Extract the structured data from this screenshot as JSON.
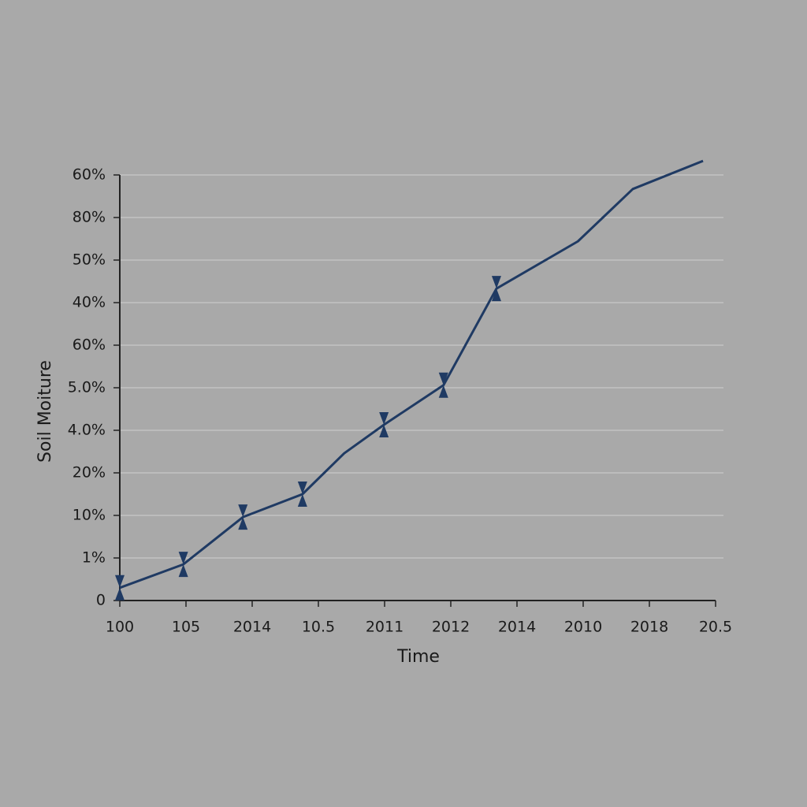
{
  "chart_data": {
    "type": "line",
    "x_label": "Time",
    "y_label": "Soil Moiture",
    "x": [
      0,
      0.96,
      1.86,
      2.76,
      3.39,
      3.99,
      4.89,
      5.69,
      6.92,
      7.75,
      8.81
    ],
    "series": [
      {
        "color": "#1f3a63",
        "values": [
          0.3,
          0.85,
          1.96,
          2.5,
          3.46,
          4.13,
          5.06,
          7.33,
          8.44,
          9.67,
          10.33
        ],
        "markers": [
          true,
          true,
          true,
          true,
          false,
          true,
          true,
          true,
          false,
          false,
          false
        ]
      }
    ],
    "xlim": [
      0,
      9
    ],
    "xticks": [
      {
        "value": 0,
        "label": "100"
      },
      {
        "value": 1,
        "label": "105"
      },
      {
        "value": 2,
        "label": "2014"
      },
      {
        "value": 3,
        "label": "10.5"
      },
      {
        "value": 4,
        "label": "2011"
      },
      {
        "value": 5,
        "label": "2012"
      },
      {
        "value": 6,
        "label": "2014"
      },
      {
        "value": 7,
        "label": "2010"
      },
      {
        "value": 8,
        "label": "2018"
      },
      {
        "value": 9,
        "label": "20.5"
      }
    ],
    "ylim": [
      0,
      10
    ],
    "yticks": [
      0,
      {
        "value": 1,
        "label": "1%"
      },
      {
        "value": 2,
        "label": "10%"
      },
      {
        "value": 3,
        "label": "20%"
      },
      {
        "value": 4,
        "label": "4.0%"
      },
      {
        "value": 5,
        "label": "5.0%"
      },
      {
        "value": 6,
        "label": "60%"
      },
      {
        "value": 7,
        "label": "40%"
      },
      {
        "value": 8,
        "label": "50%"
      },
      {
        "value": 9,
        "label": "80%"
      },
      {
        "value": 10,
        "label": "60%"
      }
    ],
    "grid": true
  }
}
